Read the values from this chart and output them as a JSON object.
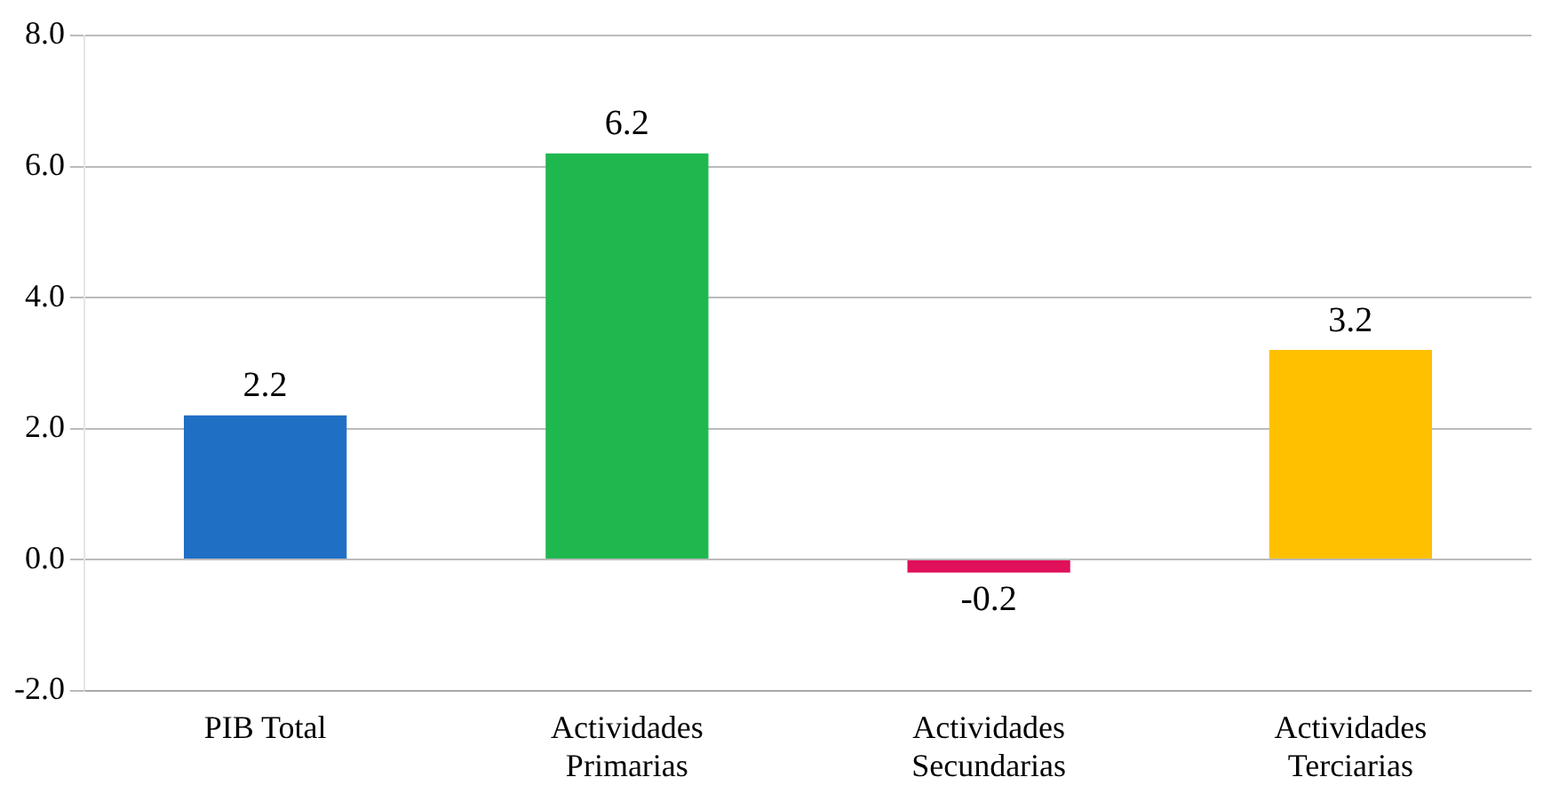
{
  "chart_data": {
    "type": "bar",
    "categories": [
      "PIB Total",
      "Actividades Primarias",
      "Actividades Secundarias",
      "Actividades Terciarias"
    ],
    "values": [
      2.2,
      6.2,
      -0.2,
      3.2
    ],
    "colors": [
      "#1f6fc5",
      "#1fb84e",
      "#e0105a",
      "#ffc000"
    ],
    "ylim": [
      -2,
      8
    ],
    "yticks": [
      {
        "value": -2,
        "label": "-2.0"
      },
      {
        "value": 0,
        "label": "0.0"
      },
      {
        "value": 2,
        "label": "2.0"
      },
      {
        "value": 4,
        "label": "4.0"
      },
      {
        "value": 6,
        "label": "6.0"
      },
      {
        "value": 8,
        "label": "8.0"
      }
    ],
    "grid": "y",
    "data_labels": true,
    "legend": false
  }
}
